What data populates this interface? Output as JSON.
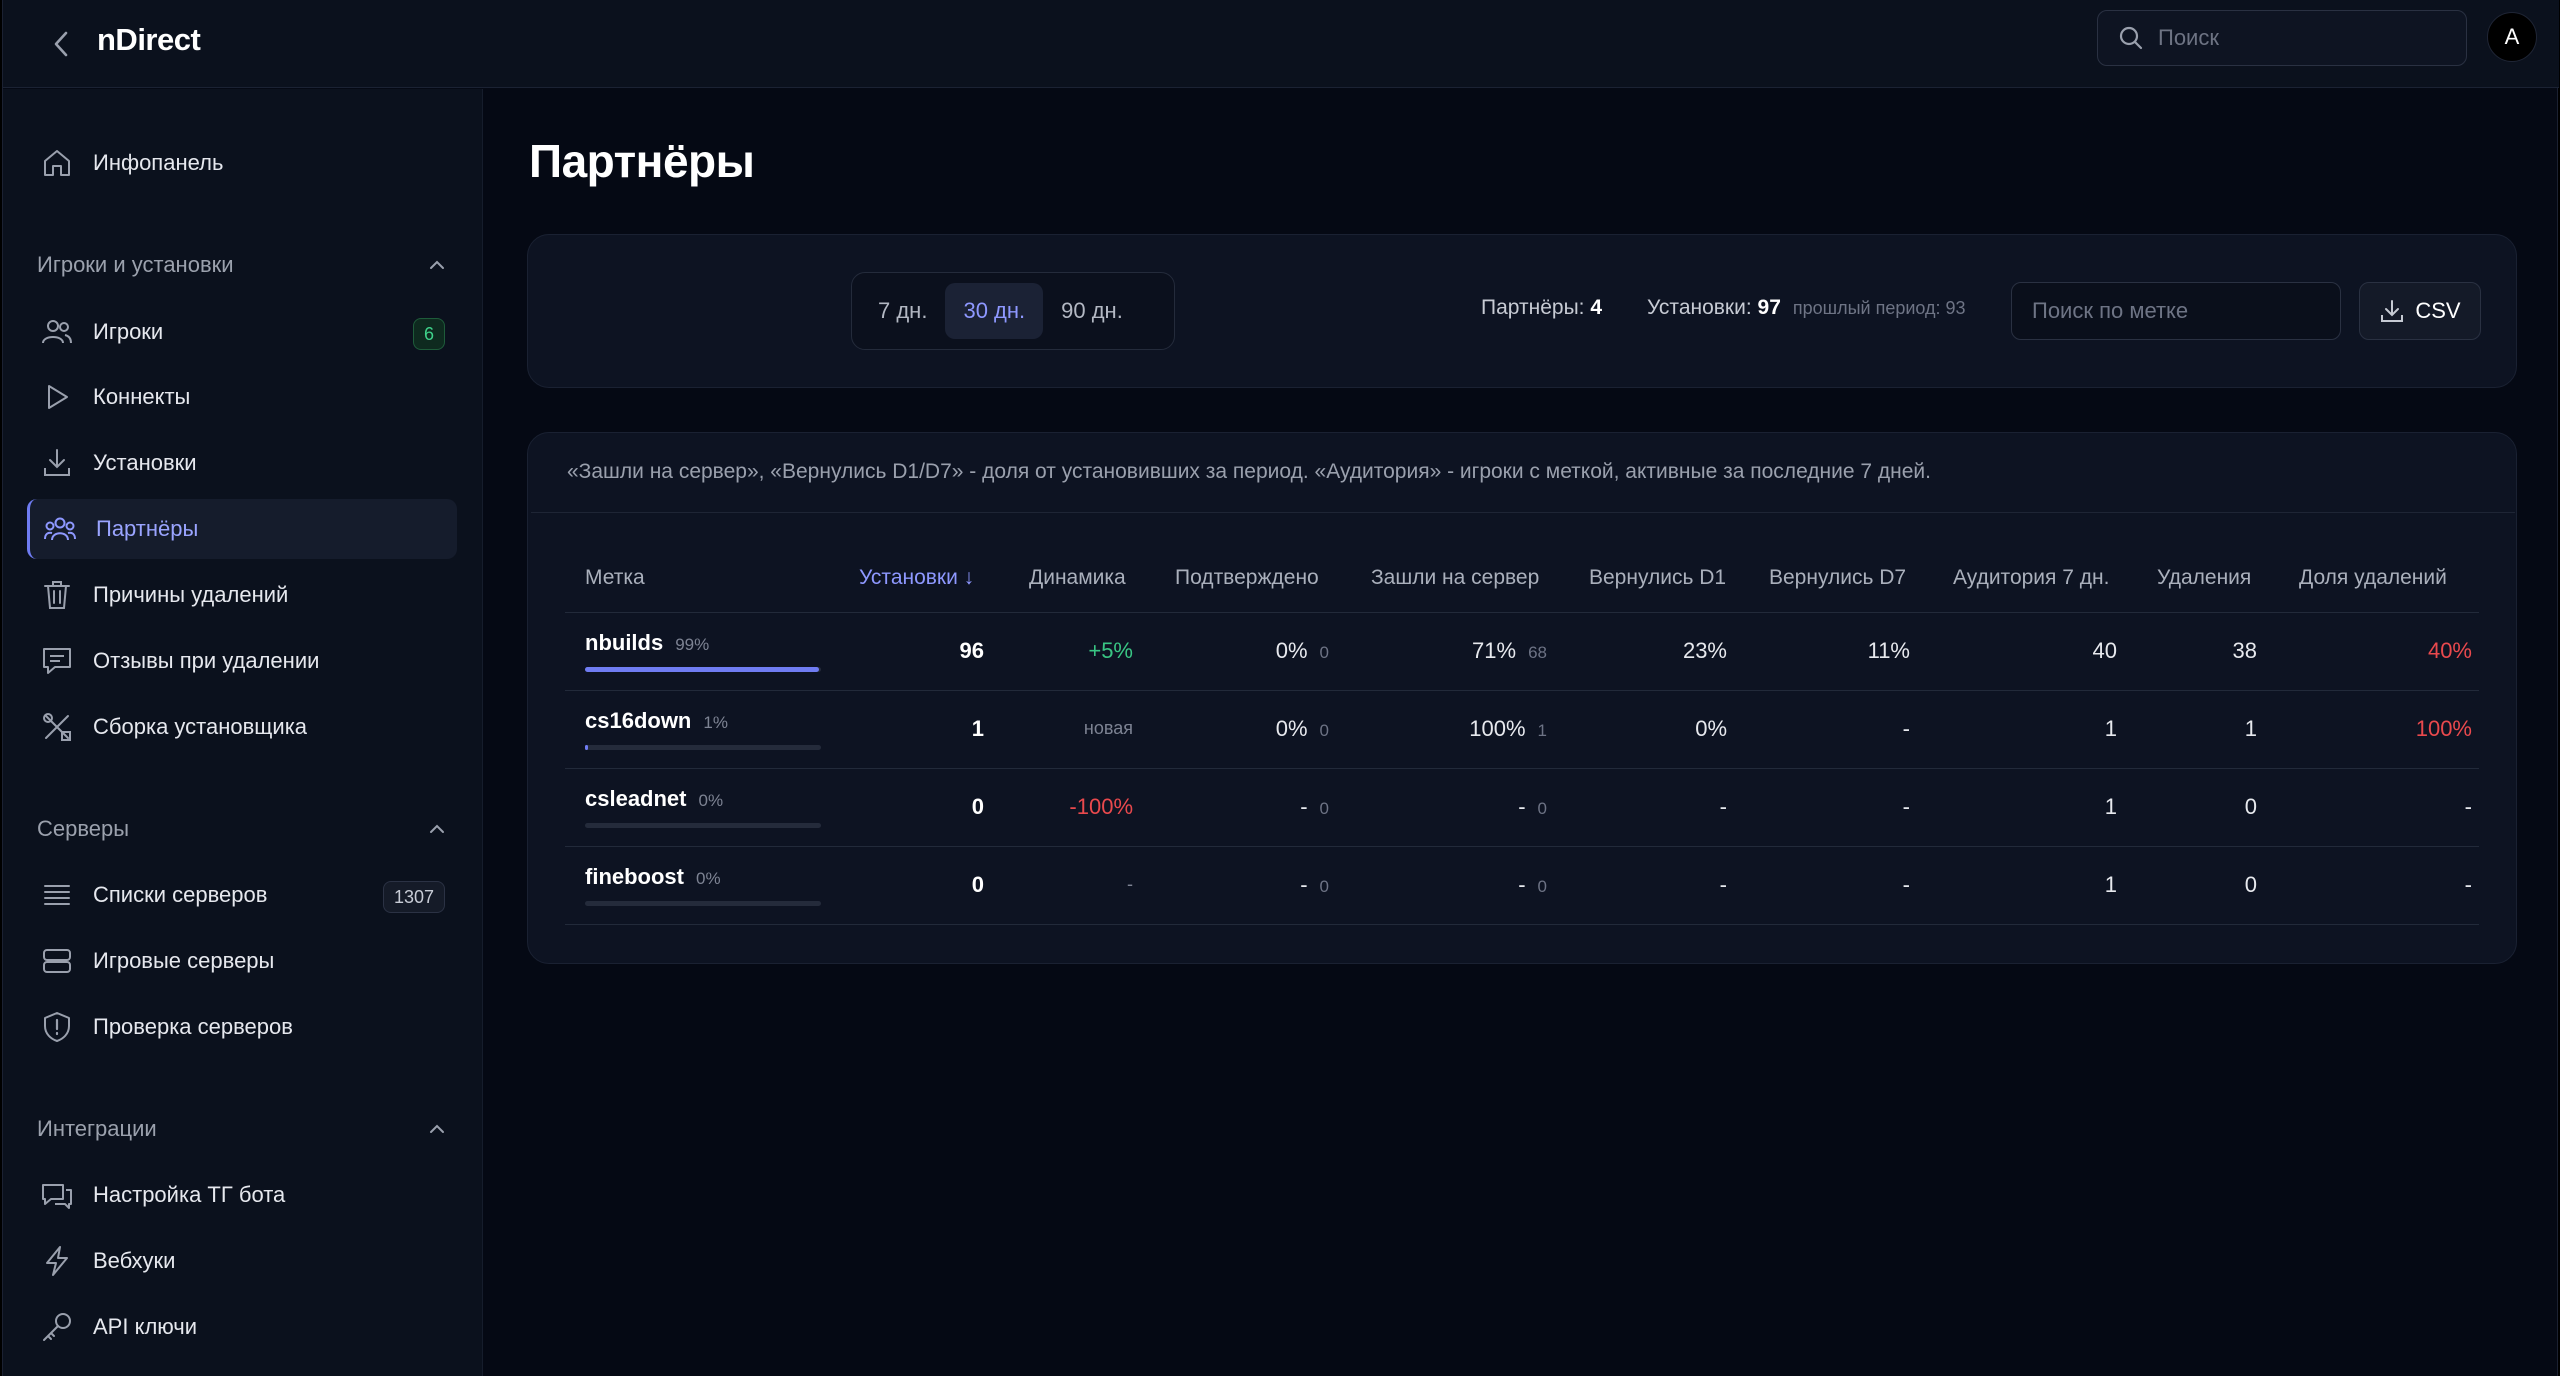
{
  "header": {
    "brand": "nDirect",
    "search_placeholder": "Поиск",
    "avatar_letter": "A"
  },
  "sidebar": {
    "home": "Инфопанель",
    "section_players": "Игроки и установки",
    "players": "Игроки",
    "players_badge": "6",
    "connects": "Коннекты",
    "installs": "Установки",
    "partners": "Партнёры",
    "delete_reasons": "Причины удалений",
    "delete_reviews": "Отзывы при удалении",
    "installer_build": "Сборка установщика",
    "section_servers": "Серверы",
    "server_lists": "Списки серверов",
    "server_lists_badge": "1307",
    "game_servers": "Игровые серверы",
    "server_check": "Проверка серверов",
    "section_integrations": "Интеграции",
    "tg_bot": "Настройка ТГ бота",
    "webhooks": "Вебхуки",
    "api_keys": "API ключи"
  },
  "main": {
    "title": "Партнёры",
    "periods": [
      "7 дн.",
      "30 дн.",
      "90 дн."
    ],
    "active_period": "30 дн.",
    "partners_label": "Партнёры:",
    "partners_value": "4",
    "installs_label": "Установки:",
    "installs_value": "97",
    "prev_period": "прошлый период: 93",
    "tag_search_placeholder": "Поиск по метке",
    "csv_label": "CSV",
    "note": "«Зашли на сервер», «Вернулись D1/D7» - доля от установивших за период. «Аудитория» - игроки с меткой, активные за последние 7 дней."
  },
  "table": {
    "headers": {
      "tag": "Метка",
      "installs": "Установки ↓",
      "dynamics": "Динамика",
      "confirmed": "Подтверждено",
      "joined": "Зашли на сервер",
      "d1": "Вернулись D1",
      "d7": "Вернулись D7",
      "audience": "Аудитория 7 дн.",
      "deletions": "Удаления",
      "del_share": "Доля удалений"
    },
    "rows": [
      {
        "tag": "nbuilds",
        "share": "99%",
        "share_frac": 0.99,
        "installs": "96",
        "dynamics": "+5%",
        "confirmed": "0%",
        "confirmed_n": "0",
        "joined": "71%",
        "joined_n": "68",
        "d1": "23%",
        "d7": "11%",
        "audience": "40",
        "deletions": "38",
        "del_share": "40%"
      },
      {
        "tag": "cs16down",
        "share": "1%",
        "share_frac": 0.01,
        "installs": "1",
        "dynamics": "новая",
        "confirmed": "0%",
        "confirmed_n": "0",
        "joined": "100%",
        "joined_n": "1",
        "d1": "0%",
        "d7": "-",
        "audience": "1",
        "deletions": "1",
        "del_share": "100%"
      },
      {
        "tag": "csleadnet",
        "share": "0%",
        "share_frac": 0,
        "installs": "0",
        "dynamics": "-100%",
        "confirmed": "-",
        "confirmed_n": "0",
        "joined": "-",
        "joined_n": "0",
        "d1": "-",
        "d7": "-",
        "audience": "1",
        "deletions": "0",
        "del_share": "-"
      },
      {
        "tag": "fineboost",
        "share": "0%",
        "share_frac": 0,
        "installs": "0",
        "dynamics": "-",
        "confirmed": "-",
        "confirmed_n": "0",
        "joined": "-",
        "joined_n": "0",
        "d1": "-",
        "d7": "-",
        "audience": "1",
        "deletions": "0",
        "del_share": "-"
      }
    ]
  }
}
